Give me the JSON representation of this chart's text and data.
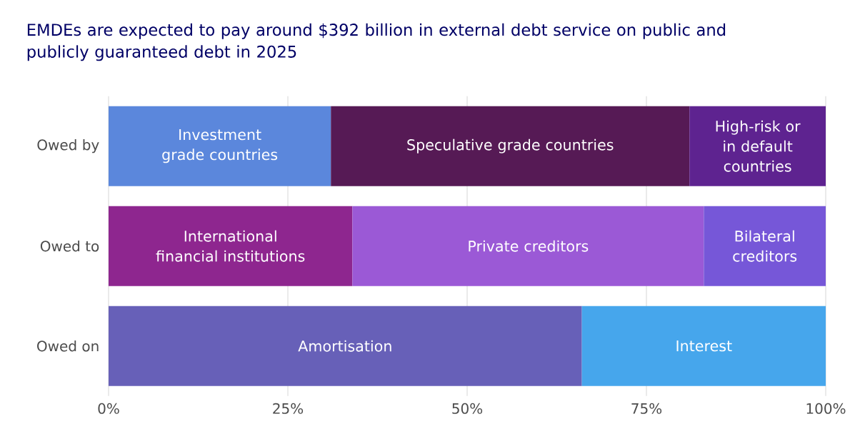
{
  "chart_data": {
    "type": "bar",
    "orientation": "horizontal",
    "stacked": true,
    "title": "EMDEs are expected to pay around $392 billion in external debt service on public and publicly guaranteed debt in 2025",
    "categories": [
      "Owed by",
      "Owed to",
      "Owed on"
    ],
    "series": [
      {
        "name": "Investment grade countries",
        "color": "#5b87dc",
        "values": [
          31,
          null,
          null
        ]
      },
      {
        "name": "Speculative grade countries",
        "color": "#561a55",
        "values": [
          50,
          null,
          null
        ]
      },
      {
        "name": "High-risk or in default countries",
        "color": "#5e2390",
        "values": [
          19,
          null,
          null
        ]
      },
      {
        "name": "International financial institutions",
        "color": "#8e268f",
        "values": [
          null,
          34,
          null
        ]
      },
      {
        "name": "Private creditors",
        "color": "#9b59d6",
        "values": [
          null,
          49,
          null
        ]
      },
      {
        "name": "Bilateral creditors",
        "color": "#7657d8",
        "values": [
          null,
          17,
          null
        ]
      },
      {
        "name": "Amortisation",
        "color": "#6760b8",
        "values": [
          null,
          null,
          66
        ]
      },
      {
        "name": "Interest",
        "color": "#46a6ec",
        "values": [
          null,
          null,
          34
        ]
      }
    ],
    "xlim": [
      0,
      100
    ],
    "xticks": [
      {
        "value": 0,
        "label": "0%"
      },
      {
        "value": 25,
        "label": "25%"
      },
      {
        "value": 50,
        "label": "50%"
      },
      {
        "value": 75,
        "label": "75%"
      },
      {
        "value": 100,
        "label": "100%"
      }
    ],
    "grid": "x",
    "legend": false
  }
}
